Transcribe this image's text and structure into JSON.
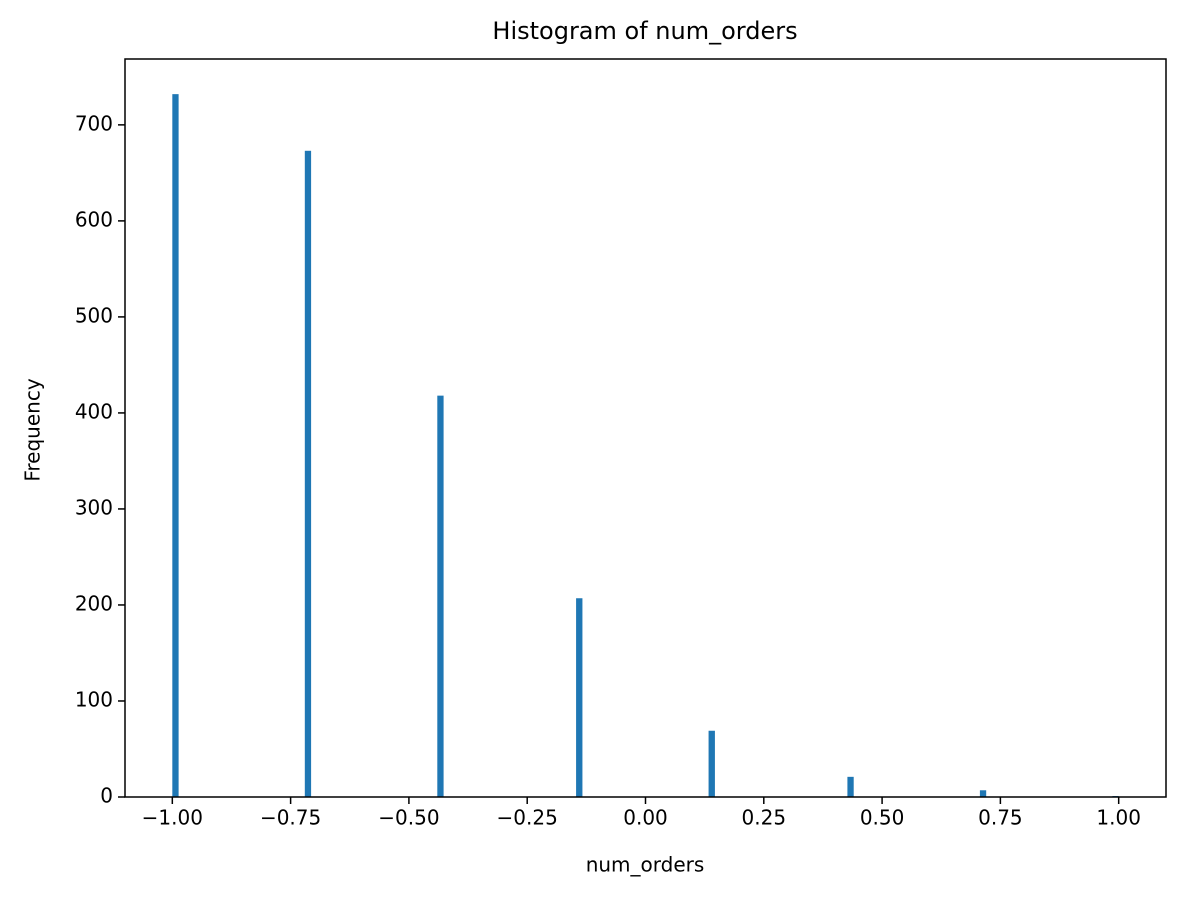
{
  "chart_data": {
    "type": "histogram",
    "title": "Histogram of num_orders",
    "x_label": "num_orders",
    "y_label": "Frequency",
    "bins": [
      -1.0,
      -0.9867,
      -0.72,
      -0.7067,
      -0.44,
      -0.4267,
      -0.1467,
      -0.1333,
      0.1333,
      0.1467,
      0.4267,
      0.44,
      0.7067,
      0.72,
      0.9867,
      1.0
    ],
    "values": [
      732,
      0,
      673,
      0,
      418,
      0,
      207,
      0,
      69,
      0,
      21,
      0,
      7,
      0,
      1
    ],
    "color": "#1f77b4",
    "xlim": [
      -1.1,
      1.1
    ],
    "xticks": [
      {
        "value": -1.0,
        "label": "−1.00"
      },
      {
        "value": -0.75,
        "label": "−0.75"
      },
      {
        "value": -0.5,
        "label": "−0.50"
      },
      {
        "value": -0.25,
        "label": "−0.25"
      },
      {
        "value": 0,
        "label": "0.00"
      },
      {
        "value": 0.25,
        "label": "0.25"
      },
      {
        "value": 0.5,
        "label": "0.50"
      },
      {
        "value": 0.75,
        "label": "0.75"
      },
      {
        "value": 1.0,
        "label": "1.00"
      }
    ],
    "ylim": [
      0,
      768.6
    ],
    "yticks": [
      0,
      100,
      200,
      300,
      400,
      500,
      600,
      700
    ]
  }
}
